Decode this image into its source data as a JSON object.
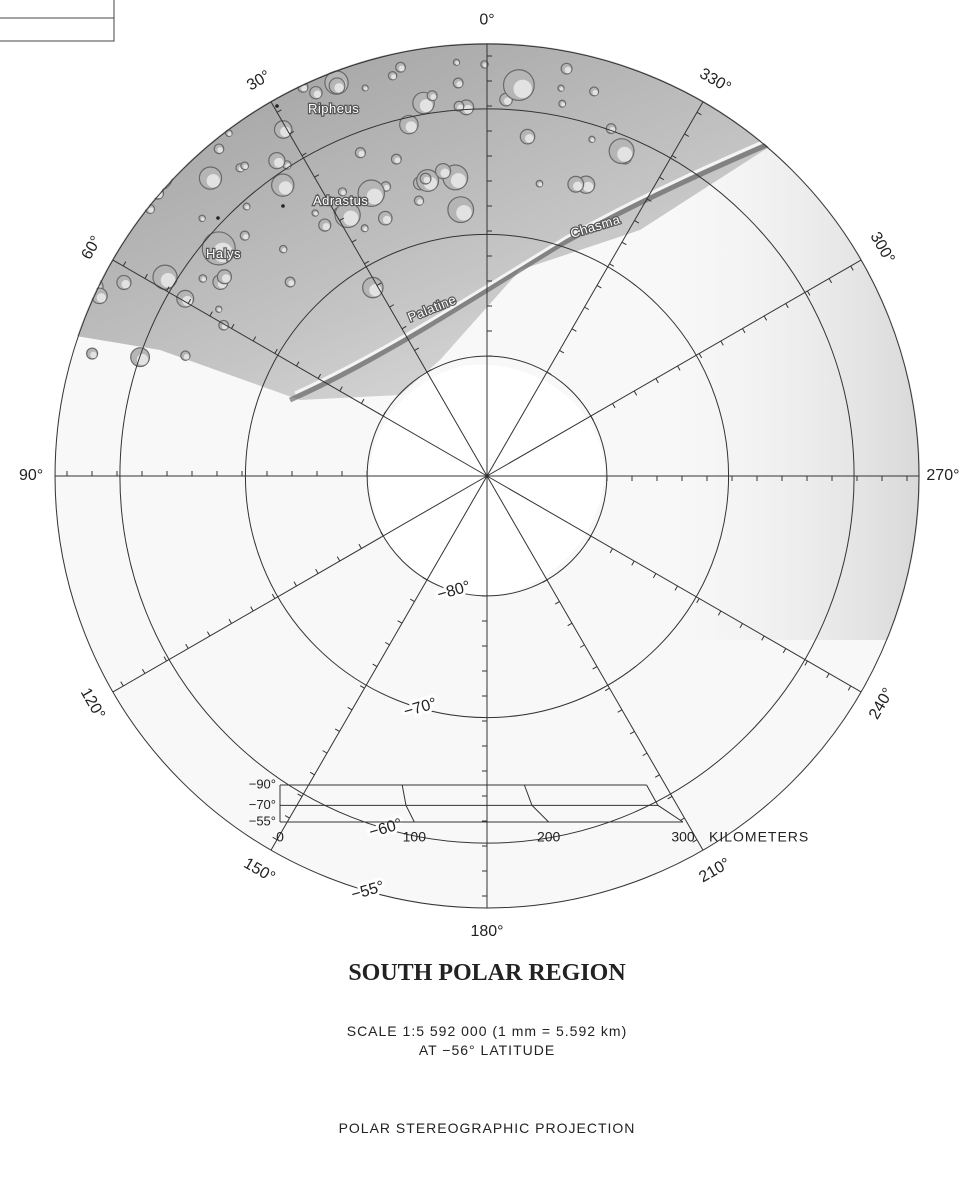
{
  "map": {
    "title": "SOUTH POLAR REGION",
    "scale": "SCALE 1:5 592 000 (1 mm = 5.592 km)",
    "scale_latitude": "AT −56° LATITUDE",
    "projection": "POLAR STEREOGRAPHIC PROJECTION",
    "meridians": [
      {
        "value": 0,
        "label": "0°"
      },
      {
        "value": 30,
        "label": "30°"
      },
      {
        "value": 60,
        "label": "60°"
      },
      {
        "value": 90,
        "label": "90°"
      },
      {
        "value": 120,
        "label": "120°"
      },
      {
        "value": 150,
        "label": "150°"
      },
      {
        "value": 180,
        "label": "180°"
      },
      {
        "value": 210,
        "label": "210°"
      },
      {
        "value": 240,
        "label": "240°"
      },
      {
        "value": 270,
        "label": "270°"
      },
      {
        "value": 300,
        "label": "300°"
      },
      {
        "value": 330,
        "label": "330°"
      }
    ],
    "parallels": [
      {
        "value": -80,
        "label": "−80°"
      },
      {
        "value": -70,
        "label": "−70°"
      },
      {
        "value": -60,
        "label": "−60°"
      },
      {
        "value": -55,
        "label": "−55°"
      }
    ],
    "features": [
      "Ripheus",
      "Adrastus",
      "Halys",
      "Palatine",
      "Chasma"
    ],
    "scale_bar": {
      "latitudes": [
        {
          "value": -90,
          "label": "−90°"
        },
        {
          "value": -70,
          "label": "−70°"
        },
        {
          "value": -55,
          "label": "−55°"
        }
      ],
      "ticks": [
        0,
        100,
        200,
        300
      ],
      "unit": "KILOMETERS"
    }
  }
}
